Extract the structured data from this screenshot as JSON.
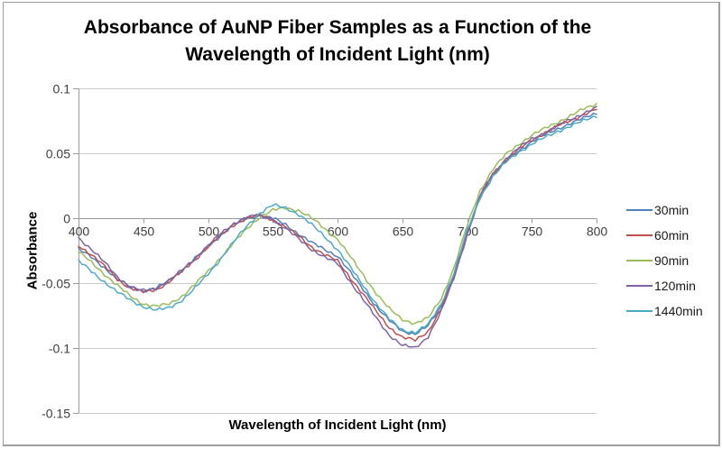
{
  "chart_data": {
    "type": "line",
    "title": "Absorbance of AuNP Fiber Samples as a Function of the Wavelength of Incident Light (nm)",
    "xlabel": "Wavelength of Incident Light (nm)",
    "ylabel": "Absorbance",
    "xlim": [
      400,
      800
    ],
    "ylim": [
      -0.15,
      0.1
    ],
    "x_tick_labels": [
      "400",
      "450",
      "500",
      "550",
      "600",
      "650",
      "700",
      "750",
      "800"
    ],
    "y_tick_labels": [
      "0.1",
      "0.05",
      "0",
      "-0.05",
      "-0.1",
      "-0.15"
    ],
    "grid": true,
    "legend_position": "right",
    "noise_amplitude": 0.001,
    "x": [
      400,
      410,
      420,
      430,
      440,
      450,
      460,
      470,
      480,
      490,
      500,
      510,
      520,
      530,
      540,
      550,
      560,
      570,
      580,
      590,
      600,
      610,
      620,
      630,
      640,
      650,
      660,
      670,
      680,
      690,
      700,
      710,
      720,
      730,
      740,
      750,
      760,
      770,
      780,
      790,
      800
    ],
    "series": [
      {
        "name": "30min",
        "color": "#4F81BD",
        "values": [
          -0.024,
          -0.03,
          -0.038,
          -0.047,
          -0.053,
          -0.056,
          -0.054,
          -0.048,
          -0.04,
          -0.031,
          -0.022,
          -0.013,
          -0.005,
          0.0,
          0.002,
          0.0,
          -0.005,
          -0.012,
          -0.019,
          -0.024,
          -0.029,
          -0.042,
          -0.055,
          -0.068,
          -0.079,
          -0.087,
          -0.089,
          -0.083,
          -0.068,
          -0.044,
          -0.012,
          0.016,
          0.033,
          0.044,
          0.052,
          0.059,
          0.064,
          0.069,
          0.073,
          0.077,
          0.081
        ]
      },
      {
        "name": "60min",
        "color": "#C0504D",
        "values": [
          -0.021,
          -0.028,
          -0.037,
          -0.047,
          -0.054,
          -0.057,
          -0.055,
          -0.049,
          -0.041,
          -0.032,
          -0.022,
          -0.013,
          -0.005,
          0.0,
          0.002,
          -0.001,
          -0.007,
          -0.014,
          -0.022,
          -0.028,
          -0.033,
          -0.046,
          -0.059,
          -0.072,
          -0.084,
          -0.092,
          -0.094,
          -0.087,
          -0.07,
          -0.045,
          -0.012,
          0.017,
          0.034,
          0.045,
          0.053,
          0.06,
          0.066,
          0.071,
          0.075,
          0.08,
          0.084
        ]
      },
      {
        "name": "90min",
        "color": "#9BBB59",
        "values": [
          -0.026,
          -0.034,
          -0.043,
          -0.052,
          -0.06,
          -0.066,
          -0.068,
          -0.066,
          -0.06,
          -0.051,
          -0.041,
          -0.03,
          -0.019,
          -0.008,
          0.001,
          0.006,
          0.008,
          0.006,
          0.0,
          -0.008,
          -0.016,
          -0.03,
          -0.044,
          -0.058,
          -0.07,
          -0.078,
          -0.081,
          -0.077,
          -0.062,
          -0.038,
          -0.006,
          0.021,
          0.038,
          0.049,
          0.057,
          0.064,
          0.069,
          0.074,
          0.079,
          0.084,
          0.088
        ]
      },
      {
        "name": "120min",
        "color": "#8064A2",
        "values": [
          -0.015,
          -0.024,
          -0.034,
          -0.045,
          -0.053,
          -0.056,
          -0.054,
          -0.048,
          -0.04,
          -0.031,
          -0.021,
          -0.012,
          -0.004,
          0.001,
          0.002,
          -0.001,
          -0.008,
          -0.016,
          -0.024,
          -0.03,
          -0.035,
          -0.049,
          -0.063,
          -0.077,
          -0.09,
          -0.098,
          -0.1,
          -0.091,
          -0.072,
          -0.046,
          -0.013,
          0.017,
          0.034,
          0.046,
          0.054,
          0.061,
          0.066,
          0.071,
          0.076,
          0.081,
          0.085
        ]
      },
      {
        "name": "1440min",
        "color": "#4BACC6",
        "values": [
          -0.033,
          -0.041,
          -0.049,
          -0.057,
          -0.063,
          -0.068,
          -0.071,
          -0.069,
          -0.063,
          -0.054,
          -0.043,
          -0.031,
          -0.018,
          -0.006,
          0.004,
          0.01,
          0.008,
          0.003,
          -0.005,
          -0.014,
          -0.024,
          -0.038,
          -0.052,
          -0.066,
          -0.078,
          -0.086,
          -0.088,
          -0.082,
          -0.066,
          -0.042,
          -0.01,
          0.016,
          0.032,
          0.043,
          0.051,
          0.057,
          0.062,
          0.067,
          0.071,
          0.075,
          0.079
        ]
      }
    ],
    "colors": {
      "gridline": "#c9c9c9",
      "axis": "#9b9b9b",
      "tick_text": "#3f3f3f",
      "border": "#9e9e9e"
    }
  }
}
